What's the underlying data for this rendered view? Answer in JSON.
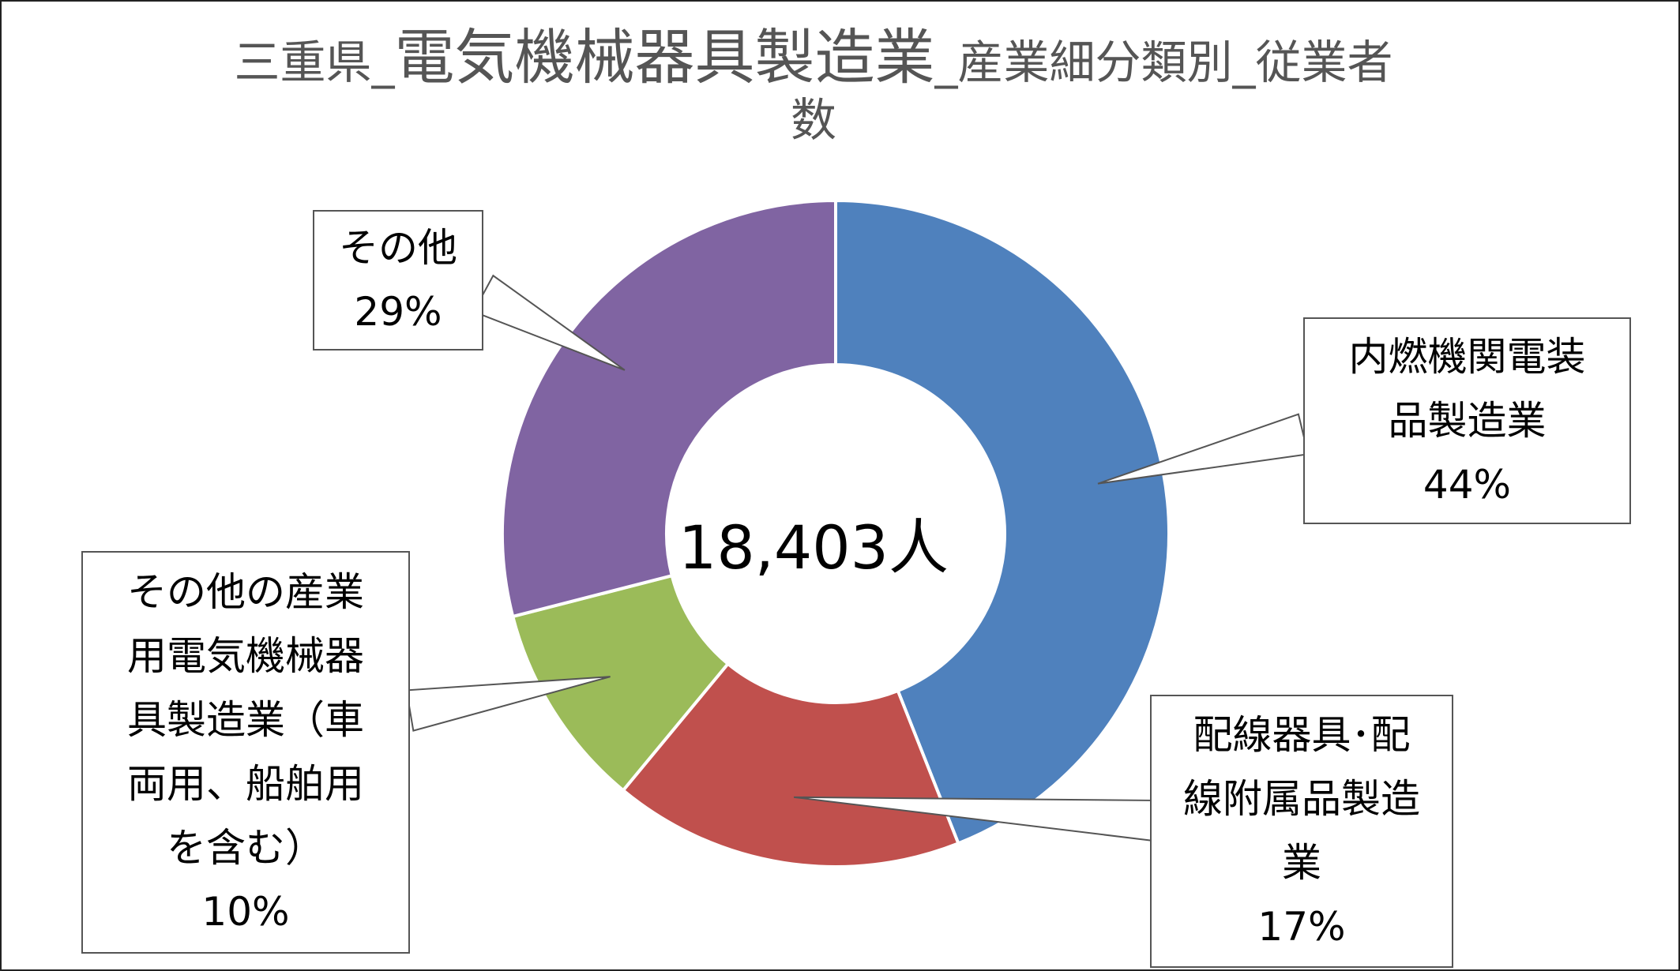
{
  "chart_data": {
    "type": "pie",
    "title_prefix": "三重県_",
    "title_main": "電気機械器具製造業",
    "title_suffix": "_産業細分類別_従業者",
    "title_line2": "数",
    "center_label": "18,403人",
    "slices": [
      {
        "name": "内燃機関電装\n品製造業",
        "percent": 44,
        "percent_label": "44%",
        "color": "#4f81bd"
      },
      {
        "name": "配線器具･配\n線附属品製造\n業",
        "percent": 17,
        "percent_label": "17%",
        "color": "#c0504d"
      },
      {
        "name": "その他の産業\n用電気機械器\n具製造業（車\n両用、船舶用\nを含む）",
        "percent": 10,
        "percent_label": "10%",
        "color": "#9bbb59"
      },
      {
        "name": "その他",
        "percent": 29,
        "percent_label": "29%",
        "color": "#8064a2"
      }
    ]
  }
}
